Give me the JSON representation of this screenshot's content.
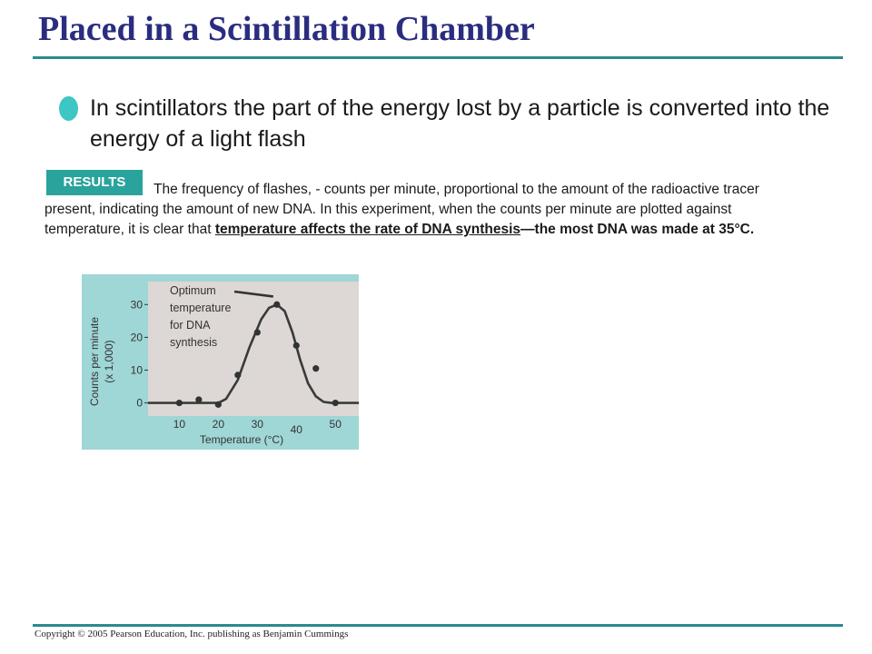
{
  "slide": {
    "title": "Placed in a Scintillation Chamber",
    "bullet": "In scintillators the part of the energy lost by a particle is converted into the energy of a light flash",
    "results_badge": "RESULTS",
    "results_text_1": "The frequency of flashes, - counts per minute, proportional to the amount of the radioactive tracer present, indicating the amount of new DNA. In this experiment, when the counts per minute are plotted against temperature, it is clear that ",
    "results_text_emph": "temperature affects the rate of DNA synthesis",
    "results_text_2": "—the most DNA was made at 35°C.",
    "footer": "Copyright © 2005 Pearson Education, Inc. publishing as Benjamin Cummings"
  },
  "colors": {
    "title": "#2a2d7f",
    "rule": "#2a8a8e",
    "bullet": "#3cc6c4",
    "badge": "#2aa39c",
    "chart_frame": "#9fd6d6",
    "plot_bg": "#ddd8d5"
  },
  "chart_data": {
    "type": "scatter",
    "xlabel": "Temperature (°C)",
    "ylabel_lines": [
      "Counts per minute",
      "(x 1,000)"
    ],
    "xlim": [
      2,
      56
    ],
    "ylim": [
      -4,
      37
    ],
    "x_ticks": [
      10,
      20,
      30,
      40,
      50
    ],
    "y_ticks": [
      0,
      10,
      20,
      30
    ],
    "grid": false,
    "annotation": {
      "lines": [
        "Optimum",
        "temperature",
        "for DNA",
        "synthesis"
      ],
      "points_to": [
        35,
        33
      ]
    },
    "points": [
      {
        "x": 10,
        "y": 0
      },
      {
        "x": 15,
        "y": 1
      },
      {
        "x": 20,
        "y": -0.5
      },
      {
        "x": 25,
        "y": 8.5
      },
      {
        "x": 30,
        "y": 21.5
      },
      {
        "x": 35,
        "y": 30
      },
      {
        "x": 40,
        "y": 17.5
      },
      {
        "x": 45,
        "y": 10.5
      },
      {
        "x": 50,
        "y": 0
      }
    ],
    "curve": [
      {
        "x": 2,
        "y": 0
      },
      {
        "x": 20,
        "y": 0
      },
      {
        "x": 22,
        "y": 1.2
      },
      {
        "x": 25,
        "y": 7
      },
      {
        "x": 28,
        "y": 17
      },
      {
        "x": 31,
        "y": 25.5
      },
      {
        "x": 33,
        "y": 29
      },
      {
        "x": 35,
        "y": 30
      },
      {
        "x": 37,
        "y": 28
      },
      {
        "x": 39,
        "y": 21.5
      },
      {
        "x": 41,
        "y": 13
      },
      {
        "x": 43,
        "y": 6
      },
      {
        "x": 45,
        "y": 2
      },
      {
        "x": 47,
        "y": 0.3
      },
      {
        "x": 49,
        "y": 0
      },
      {
        "x": 56,
        "y": 0
      }
    ]
  }
}
